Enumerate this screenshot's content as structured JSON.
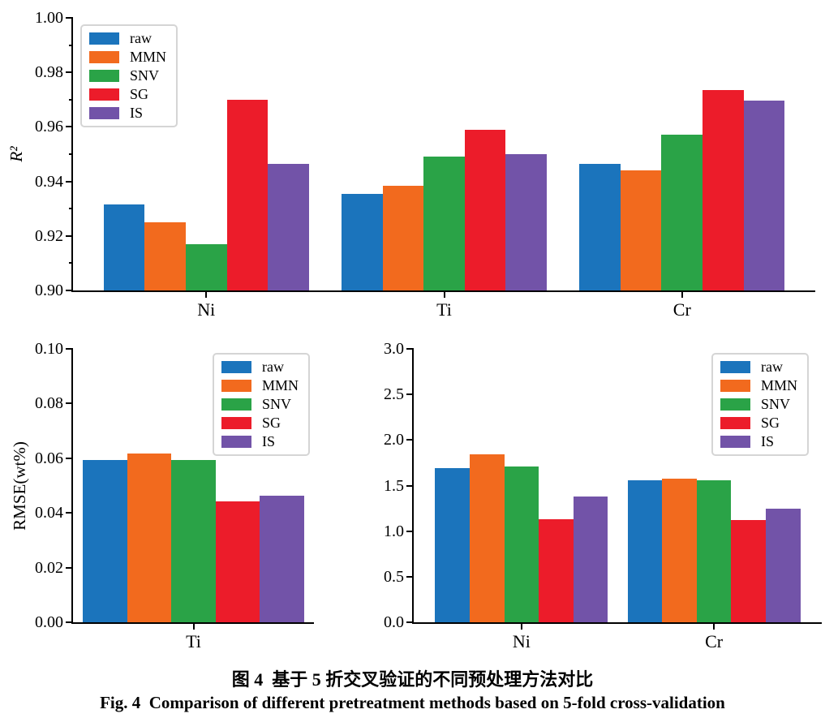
{
  "figure": {
    "caption_zh": "图 4  基于 5 折交叉验证的不同预处理方法对比",
    "caption_en": "Fig. 4  Comparison of different pretreatment methods based on 5-fold cross-validation"
  },
  "colors": {
    "raw": "#1b74bc",
    "MMN": "#f26a1e",
    "SNV": "#2aa347",
    "SG": "#ec1c2a",
    "IS": "#7253a8",
    "axis": "#000000",
    "legend_border": "#d5d5d5"
  },
  "chart_data": [
    {
      "type": "bar",
      "title": "",
      "ylabel": "R²",
      "ylabel_italic": true,
      "xlabel": "",
      "categories": [
        "Ni",
        "Ti",
        "Cr"
      ],
      "series": [
        {
          "name": "raw",
          "values": [
            0.9315,
            0.9355,
            0.9465
          ]
        },
        {
          "name": "MMN",
          "values": [
            0.925,
            0.9385,
            0.944
          ]
        },
        {
          "name": "SNV",
          "values": [
            0.917,
            0.949,
            0.957
          ]
        },
        {
          "name": "SG",
          "values": [
            0.97,
            0.959,
            0.9735
          ]
        },
        {
          "name": "IS",
          "values": [
            0.9465,
            0.95,
            0.9695
          ]
        }
      ],
      "ylim": [
        0.9,
        1.0
      ],
      "yticks": [
        "1.00",
        "0.98",
        "0.96",
        "0.94",
        "0.92",
        "0.90"
      ],
      "ytick_minor": 0.01,
      "legend": [
        "raw",
        "MMN",
        "SNV",
        "SG",
        "IS"
      ],
      "legend_position": "top-left",
      "grid": false
    },
    {
      "type": "bar",
      "title": "",
      "ylabel": "RMSE(wt%)",
      "ylabel_italic": false,
      "xlabel": "",
      "categories": [
        "Ti"
      ],
      "series": [
        {
          "name": "raw",
          "values": [
            0.0593
          ]
        },
        {
          "name": "MMN",
          "values": [
            0.0616
          ]
        },
        {
          "name": "SNV",
          "values": [
            0.0595
          ]
        },
        {
          "name": "SG",
          "values": [
            0.0441
          ]
        },
        {
          "name": "IS",
          "values": [
            0.0462
          ]
        }
      ],
      "ylim": [
        0.0,
        0.1
      ],
      "yticks": [
        "0.10",
        "0.08",
        "0.06",
        "0.04",
        "0.02",
        "0.00"
      ],
      "ytick_minor": null,
      "legend": [
        "raw",
        "MMN",
        "SNV",
        "SG",
        "IS"
      ],
      "legend_position": "top-right",
      "grid": false
    },
    {
      "type": "bar",
      "title": "",
      "ylabel": "",
      "ylabel_italic": false,
      "xlabel": "",
      "categories": [
        "Ni",
        "Cr"
      ],
      "series": [
        {
          "name": "raw",
          "values": [
            1.69,
            1.56
          ]
        },
        {
          "name": "MMN",
          "values": [
            1.84,
            1.58
          ]
        },
        {
          "name": "SNV",
          "values": [
            1.71,
            1.56
          ]
        },
        {
          "name": "SG",
          "values": [
            1.13,
            1.12
          ]
        },
        {
          "name": "IS",
          "values": [
            1.38,
            1.25
          ]
        }
      ],
      "ylim": [
        0.0,
        3.0
      ],
      "yticks": [
        "3.0",
        "2.5",
        "2.0",
        "1.5",
        "1.0",
        "0.5",
        "0.0"
      ],
      "ytick_minor": null,
      "legend": [
        "raw",
        "MMN",
        "SNV",
        "SG",
        "IS"
      ],
      "legend_position": "top-right",
      "grid": false
    }
  ]
}
